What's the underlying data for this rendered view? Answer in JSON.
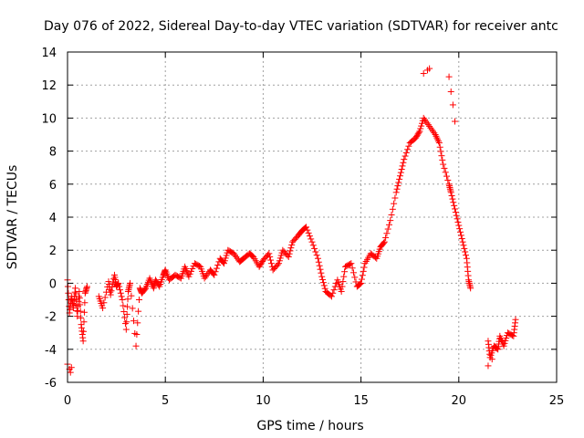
{
  "chart_data": {
    "type": "scatter",
    "title": "Day 076 of 2022, Sidereal Day-to-day VTEC variation (SDTVAR) for receiver antc",
    "xlabel": "GPS time / hours",
    "ylabel": "SDTVAR / TECUs",
    "xlim": [
      0,
      25
    ],
    "ylim": [
      -6,
      14
    ],
    "xticks": [
      0,
      5,
      10,
      15,
      20,
      25
    ],
    "yticks": [
      -6,
      -4,
      -2,
      0,
      2,
      4,
      6,
      8,
      10,
      12,
      14
    ],
    "xtick_labels": [
      "0",
      "5",
      "10",
      "15",
      "20",
      "25"
    ],
    "ytick_labels": [
      "-6",
      "-4",
      "-2",
      "0",
      "2",
      "4",
      "6",
      "8",
      "10",
      "12",
      "14"
    ],
    "grid": true,
    "marker": "+",
    "color": "#ff0000",
    "series": [
      {
        "name": "SDTVAR",
        "x": [
          0.0,
          0.1,
          0.2,
          0.3,
          0.4,
          0.5,
          0.6,
          0.7,
          0.8,
          0.9,
          1.0,
          1.6,
          1.8,
          2.1,
          2.2,
          2.4,
          2.5,
          2.6,
          2.8,
          3.0,
          3.1,
          3.2,
          3.5,
          3.7,
          3.8,
          4.0,
          4.2,
          4.4,
          4.5,
          4.7,
          4.9,
          5.0,
          5.2,
          5.5,
          5.8,
          6.0,
          6.2,
          6.5,
          6.8,
          7.0,
          7.3,
          7.5,
          7.8,
          8.0,
          8.2,
          8.5,
          8.8,
          9.0,
          9.3,
          9.5,
          9.8,
          10.0,
          10.3,
          10.5,
          10.8,
          11.0,
          11.3,
          11.5,
          11.8,
          12.0,
          12.2,
          12.5,
          12.8,
          13.0,
          13.2,
          13.5,
          13.8,
          14.0,
          14.2,
          14.5,
          14.8,
          15.0,
          15.2,
          15.5,
          15.8,
          16.0,
          16.2,
          16.5,
          16.8,
          17.0,
          17.2,
          17.5,
          17.8,
          18.0,
          18.2,
          18.5,
          18.8,
          19.0,
          19.2,
          19.5,
          19.6,
          19.8,
          20.0,
          20.2,
          20.4,
          20.5,
          20.6,
          21.5,
          21.6,
          21.8,
          22.0,
          22.1,
          22.3,
          22.5,
          22.8,
          22.9
        ],
        "y": [
          0.2,
          -1.8,
          -0.8,
          -1.5,
          -0.3,
          -2.0,
          -0.5,
          -2.5,
          -3.5,
          -0.6,
          -0.2,
          -0.8,
          -1.5,
          0.1,
          -0.7,
          0.5,
          -0.2,
          0.0,
          -1.0,
          -2.8,
          -0.5,
          0.0,
          -3.8,
          -0.3,
          -0.6,
          -0.3,
          0.3,
          -0.3,
          0.2,
          -0.2,
          0.5,
          0.8,
          0.2,
          0.5,
          0.3,
          1.0,
          0.4,
          1.2,
          1.0,
          0.3,
          0.8,
          0.5,
          1.5,
          1.2,
          2.0,
          1.8,
          1.3,
          1.5,
          1.8,
          1.6,
          1.0,
          1.4,
          1.8,
          0.8,
          1.2,
          2.0,
          1.6,
          2.5,
          2.9,
          3.2,
          3.4,
          2.5,
          1.5,
          0.4,
          -0.5,
          -0.8,
          0.2,
          -0.5,
          1.0,
          1.2,
          -0.2,
          0.0,
          1.2,
          1.8,
          1.5,
          2.2,
          2.5,
          3.8,
          5.5,
          6.5,
          7.5,
          8.5,
          8.8,
          9.2,
          10.0,
          9.5,
          9.0,
          8.5,
          7.2,
          6.0,
          5.5,
          4.5,
          3.5,
          2.5,
          1.5,
          0.2,
          -0.3,
          -3.5,
          -4.5,
          -3.8,
          -4.0,
          -3.2,
          -3.8,
          -3.0,
          -3.2,
          -2.2
        ]
      }
    ],
    "extra_points": [
      {
        "x": 0.0,
        "y": -4.9
      },
      {
        "x": 0.1,
        "y": -5.2
      },
      {
        "x": 0.15,
        "y": -5.4
      },
      {
        "x": 0.2,
        "y": -5.1
      },
      {
        "x": 18.2,
        "y": 12.7
      },
      {
        "x": 18.4,
        "y": 12.9
      },
      {
        "x": 18.5,
        "y": 13.0
      },
      {
        "x": 19.5,
        "y": 12.5
      },
      {
        "x": 19.6,
        "y": 11.6
      },
      {
        "x": 19.7,
        "y": 10.8
      },
      {
        "x": 19.8,
        "y": 9.8
      },
      {
        "x": 21.5,
        "y": -5.0
      },
      {
        "x": 21.7,
        "y": -4.6
      }
    ]
  }
}
